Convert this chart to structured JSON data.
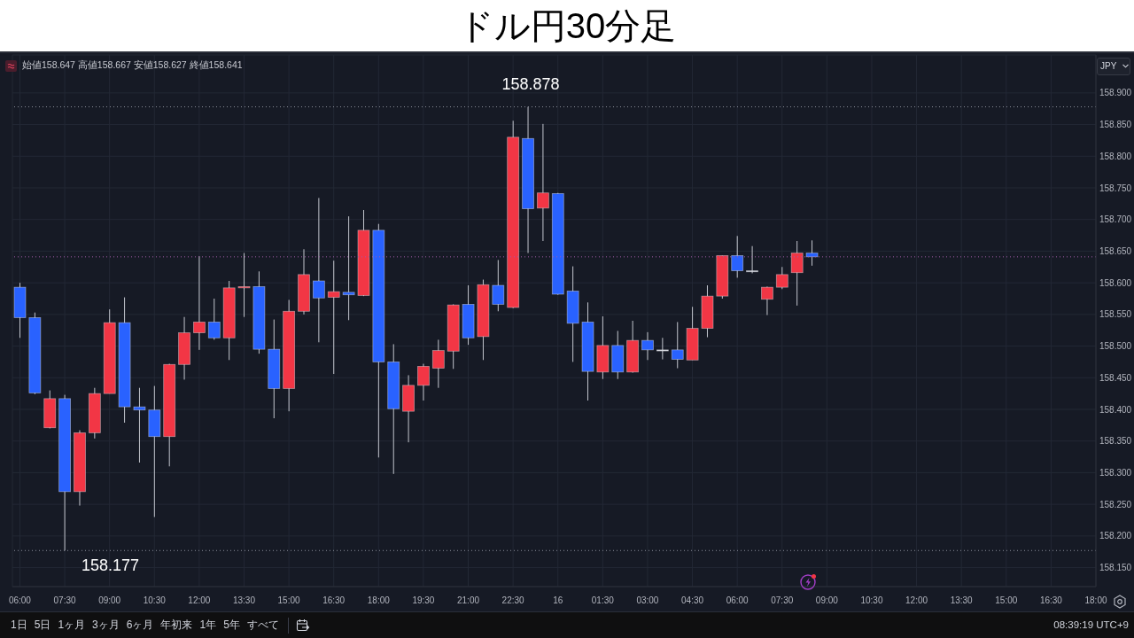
{
  "chart_data": {
    "type": "candlestick",
    "title": "ドル円30分足",
    "ylabel": "JPY",
    "categories": [
      "06:00",
      null,
      null,
      "07:30",
      null,
      null,
      "09:00",
      null,
      null,
      "10:30",
      null,
      null,
      "12:00",
      null,
      null,
      "13:30",
      null,
      null,
      "15:00",
      null,
      null,
      "16:30",
      null,
      null,
      "18:00",
      null,
      null,
      "19:30",
      null,
      null,
      "21:00",
      null,
      null,
      "22:30",
      null,
      null,
      "16",
      null,
      null,
      "01:30",
      null,
      null,
      "03:00",
      null,
      null,
      "04:30",
      null,
      null,
      "06:00",
      null,
      null,
      "07:30",
      null,
      null,
      "09:00",
      null,
      null,
      "10:30",
      null,
      null,
      "12:00",
      null,
      null,
      "13:30",
      null,
      null,
      "15:00",
      null,
      null,
      "16:30",
      null,
      null,
      "18:00"
    ],
    "ohlc": [
      [
        158.593,
        158.6,
        158.513,
        158.545
      ],
      [
        158.545,
        158.553,
        158.424,
        158.426
      ],
      [
        158.371,
        158.43,
        158.37,
        158.417
      ],
      [
        158.417,
        158.423,
        158.177,
        158.27
      ],
      [
        158.27,
        158.367,
        158.248,
        158.363
      ],
      [
        158.363,
        158.434,
        158.354,
        158.425
      ],
      [
        158.425,
        158.558,
        158.425,
        158.537
      ],
      [
        158.537,
        158.577,
        158.379,
        158.404
      ],
      [
        158.404,
        158.434,
        158.316,
        158.399
      ],
      [
        158.399,
        158.437,
        158.23,
        158.357
      ],
      [
        158.357,
        158.472,
        158.31,
        158.471
      ],
      [
        158.471,
        158.546,
        158.447,
        158.521
      ],
      [
        158.521,
        158.642,
        158.494,
        158.538
      ],
      [
        158.538,
        158.575,
        158.51,
        158.513
      ],
      [
        158.513,
        158.603,
        158.478,
        158.592
      ],
      [
        158.592,
        158.647,
        158.546,
        158.594
      ],
      [
        158.594,
        158.618,
        158.488,
        158.495
      ],
      [
        158.495,
        158.542,
        158.386,
        158.433
      ],
      [
        158.433,
        158.573,
        158.397,
        158.555
      ],
      [
        158.555,
        158.653,
        158.55,
        158.613
      ],
      [
        158.603,
        158.734,
        158.506,
        158.576
      ],
      [
        158.577,
        158.635,
        158.456,
        158.586
      ],
      [
        158.585,
        158.705,
        158.541,
        158.581
      ],
      [
        158.58,
        158.715,
        158.579,
        158.683
      ],
      [
        158.683,
        158.693,
        158.324,
        158.475
      ],
      [
        158.475,
        158.503,
        158.298,
        158.401
      ],
      [
        158.397,
        158.454,
        158.348,
        158.438
      ],
      [
        158.438,
        158.472,
        158.414,
        158.468
      ],
      [
        158.465,
        158.51,
        158.434,
        158.493
      ],
      [
        158.492,
        158.566,
        158.464,
        158.565
      ],
      [
        158.566,
        158.596,
        158.502,
        158.513
      ],
      [
        158.515,
        158.605,
        158.478,
        158.597
      ],
      [
        158.596,
        158.636,
        158.555,
        158.566
      ],
      [
        158.561,
        158.856,
        158.56,
        158.83
      ],
      [
        158.828,
        158.878,
        158.647,
        158.717
      ],
      [
        158.718,
        158.851,
        158.666,
        158.742
      ],
      [
        158.741,
        158.742,
        158.581,
        158.582
      ],
      [
        158.587,
        158.626,
        158.475,
        158.536
      ],
      [
        158.538,
        158.569,
        158.414,
        158.46
      ],
      [
        158.459,
        158.547,
        158.448,
        158.501
      ],
      [
        158.501,
        158.524,
        158.448,
        158.459
      ],
      [
        158.459,
        158.54,
        158.458,
        158.509
      ],
      [
        158.509,
        158.522,
        158.478,
        158.494
      ],
      [
        158.494,
        158.513,
        158.479,
        158.494
      ],
      [
        158.494,
        158.538,
        158.465,
        158.479
      ],
      [
        158.478,
        158.562,
        158.478,
        158.528
      ],
      [
        158.528,
        158.596,
        158.514,
        158.579
      ],
      [
        158.579,
        158.643,
        158.575,
        158.643
      ],
      [
        158.643,
        158.674,
        158.608,
        158.619
      ],
      [
        158.619,
        158.658,
        158.615,
        158.619
      ],
      [
        158.574,
        158.594,
        158.549,
        158.593
      ],
      [
        158.593,
        158.625,
        158.59,
        158.613
      ],
      [
        158.616,
        158.666,
        158.564,
        158.647
      ],
      [
        158.647,
        158.667,
        158.627,
        158.641
      ],
      null,
      null,
      null,
      null,
      null,
      null,
      null,
      null,
      null,
      null,
      null,
      null,
      null,
      null,
      null,
      null,
      null,
      null,
      null
    ],
    "colors": [
      "#2962ff",
      "#2962ff",
      "#f23645",
      "#2962ff",
      "#f23645",
      "#f23645",
      "#f23645",
      "#2962ff",
      "#2962ff",
      "#2962ff",
      "#f23645",
      "#f23645",
      "#f23645",
      "#2962ff",
      "#f23645",
      "#f23645",
      "#2962ff",
      "#2962ff",
      "#f23645",
      "#f23645",
      "#2962ff",
      "#f23645",
      "#2962ff",
      "#f23645",
      "#2962ff",
      "#2962ff",
      "#f23645",
      "#f23645",
      "#f23645",
      "#f23645",
      "#2962ff",
      "#f23645",
      "#2962ff",
      "#f23645",
      "#2962ff",
      "#f23645",
      "#2962ff",
      "#2962ff",
      "#2962ff",
      "#f23645",
      "#2962ff",
      "#f23645",
      "#2962ff",
      "#d1d4dc",
      "#2962ff",
      "#f23645",
      "#f23645",
      "#f23645",
      "#2962ff",
      "#d1d4dc",
      "#f23645",
      "#f23645",
      "#f23645",
      "#2962ff",
      null,
      null,
      null,
      null,
      null,
      null,
      null,
      null,
      null,
      null,
      null,
      null,
      null,
      null,
      null,
      null,
      null,
      null,
      null
    ],
    "ylim": [
      158.12,
      158.96
    ],
    "yticks": [
      {
        "value": 158.15,
        "label": "158.150"
      },
      {
        "value": 158.2,
        "label": "158.200"
      },
      {
        "value": 158.25,
        "label": "158.250"
      },
      {
        "value": 158.3,
        "label": "158.300"
      },
      {
        "value": 158.35,
        "label": "158.350"
      },
      {
        "value": 158.4,
        "label": "158.400"
      },
      {
        "value": 158.45,
        "label": "158.450"
      },
      {
        "value": 158.5,
        "label": "158.500"
      },
      {
        "value": 158.55,
        "label": "158.550"
      },
      {
        "value": 158.6,
        "label": "158.600"
      },
      {
        "value": 158.65,
        "label": "158.650"
      },
      {
        "value": 158.7,
        "label": "158.700"
      },
      {
        "value": 158.75,
        "label": "158.750"
      },
      {
        "value": 158.8,
        "label": "158.800"
      },
      {
        "value": 158.85,
        "label": "158.850"
      },
      {
        "value": 158.9,
        "label": "158.900"
      }
    ],
    "grid": true,
    "ref_lines": [
      {
        "axis": "y",
        "value": 158.878,
        "color": "#8a8e99",
        "line_style": "dotted"
      },
      {
        "axis": "y",
        "value": 158.177,
        "color": "#8a8e99",
        "line_style": "dotted"
      },
      {
        "axis": "y",
        "value": 158.641,
        "color": "#a05aa8",
        "line_style": "dotted"
      }
    ],
    "annotations": [
      "始値158.647 高値158.667 安値158.627 終値158.641",
      {
        "text": "158.878",
        "y": 158.878
      },
      {
        "text": "158.177",
        "y": 158.177
      },
      "1日",
      "5日",
      "1ヶ月",
      "3ヶ月",
      "6ヶ月",
      "年初来",
      "1年",
      "5年",
      "すべて",
      "08:39:19 UTC+9"
    ]
  }
}
